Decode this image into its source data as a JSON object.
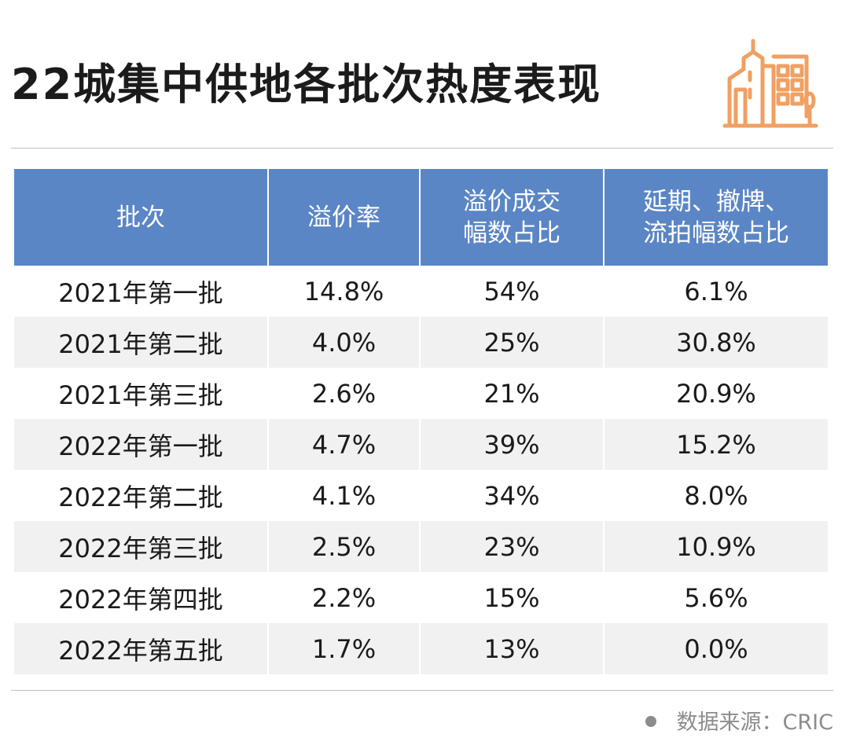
{
  "title": "22城集中供地各批次热度表现",
  "source": "数据来源：CRIC",
  "logo_icon": "city-buildings-icon",
  "colors": {
    "header_bg": "#5b86c5",
    "header_text": "#ffffff",
    "row_stripe": "#f1f1f1",
    "logo": "#f0a062"
  },
  "chart_data": {
    "type": "table",
    "title": "22城集中供地各批次热度表现",
    "columns": [
      {
        "lines": [
          "批次"
        ]
      },
      {
        "lines": [
          "溢价率"
        ]
      },
      {
        "lines": [
          "溢价成交",
          "幅数占比"
        ]
      },
      {
        "lines": [
          "延期、撤牌、",
          "流拍幅数占比"
        ]
      }
    ],
    "rows": [
      [
        "2021年第一批",
        "14.8%",
        "54%",
        "6.1%"
      ],
      [
        "2021年第二批",
        "4.0%",
        "25%",
        "30.8%"
      ],
      [
        "2021年第三批",
        "2.6%",
        "21%",
        "20.9%"
      ],
      [
        "2022年第一批",
        "4.7%",
        "39%",
        "15.2%"
      ],
      [
        "2022年第二批",
        "4.1%",
        "34%",
        "8.0%"
      ],
      [
        "2022年第三批",
        "2.5%",
        "23%",
        "10.9%"
      ],
      [
        "2022年第四批",
        "2.2%",
        "15%",
        "5.6%"
      ],
      [
        "2022年第五批",
        "1.7%",
        "13%",
        "0.0%"
      ]
    ]
  }
}
